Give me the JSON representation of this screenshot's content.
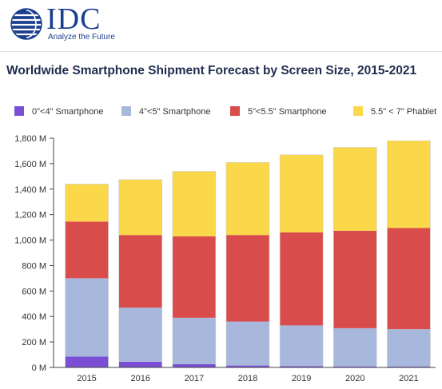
{
  "header": {
    "brand": "IDC",
    "tagline": "Analyze the Future"
  },
  "colors": {
    "brand": "#1b3f8f",
    "series": [
      "#7a4fd6",
      "#a8b8dc",
      "#d94c4c",
      "#fbd84a"
    ]
  },
  "chart_data": {
    "type": "bar",
    "stacked": true,
    "title": "Worldwide Smartphone Shipment Forecast by Screen Size, 2015-2021",
    "xlabel": "",
    "ylabel": "",
    "categories": [
      "2015",
      "2016",
      "2017",
      "2018",
      "2019",
      "2020",
      "2021"
    ],
    "series": [
      {
        "name": "0\"<4\" Smartphone",
        "values": [
          85,
          45,
          25,
          15,
          10,
          8,
          7
        ]
      },
      {
        "name": "4\"<5\" Smartphone",
        "values": [
          615,
          425,
          365,
          345,
          320,
          300,
          293
        ]
      },
      {
        "name": "5\"<5.5\" Smartphone",
        "values": [
          445,
          570,
          640,
          680,
          730,
          765,
          795
        ]
      },
      {
        "name": "5.5\" < 7\" Phablet",
        "values": [
          295,
          435,
          510,
          570,
          610,
          655,
          685
        ]
      }
    ],
    "ylim": [
      0,
      1800
    ],
    "yticks": [
      0,
      200,
      400,
      600,
      800,
      1000,
      1200,
      1400,
      1600,
      1800
    ],
    "ytick_labels": [
      "0 M",
      "200 M",
      "400 M",
      "600 M",
      "800 M",
      "1,000 M",
      "1,200 M",
      "1,400 M",
      "1,600 M",
      "1,800 M"
    ],
    "legend_position": "top",
    "grid": false
  }
}
